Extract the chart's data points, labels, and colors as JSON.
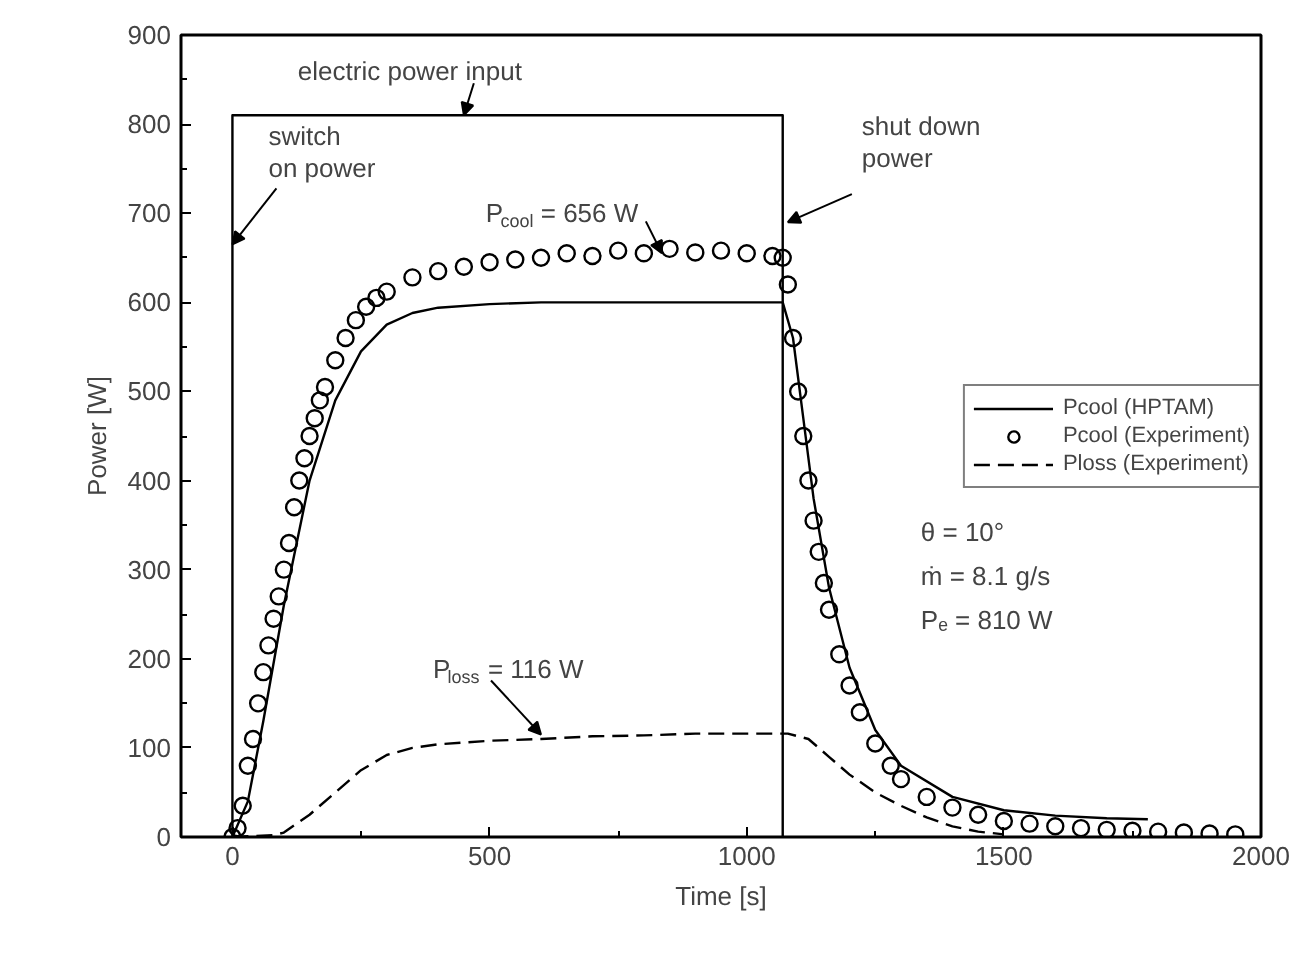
{
  "chart_data": {
    "type": "line",
    "xlabel": "Time [s]",
    "ylabel": "Power [W]",
    "xlim": [
      -100,
      2000
    ],
    "ylim": [
      0,
      900
    ],
    "xticks": [
      0,
      {
        "value": 250,
        "label": null
      },
      500,
      {
        "value": 750,
        "label": null
      },
      1000,
      {
        "value": 1250,
        "label": null
      },
      1500,
      {
        "value": 1750,
        "label": null
      },
      2000
    ],
    "yticks": [
      0,
      {
        "value": 50,
        "label": null
      },
      100,
      {
        "value": 150,
        "label": null
      },
      200,
      {
        "value": 250,
        "label": null
      },
      300,
      {
        "value": 350,
        "label": null
      },
      400,
      {
        "value": 450,
        "label": null
      },
      500,
      {
        "value": 550,
        "label": null
      },
      600,
      {
        "value": 650,
        "label": null
      },
      700,
      {
        "value": 750,
        "label": null
      },
      800,
      {
        "value": 850,
        "label": null
      },
      900
    ],
    "grid": false,
    "legend": "right",
    "series": [
      {
        "name": "Pcool (HPTAM)",
        "line_style": "solid",
        "color": "#000000",
        "x": [
          0,
          30,
          60,
          100,
          150,
          200,
          250,
          300,
          350,
          400,
          500,
          600,
          800,
          1000,
          1070,
          1090,
          1110,
          1130,
          1160,
          1200,
          1250,
          1300,
          1400,
          1500,
          1600,
          1700,
          1780
        ],
        "values": [
          0,
          40,
          130,
          260,
          400,
          490,
          545,
          575,
          588,
          594,
          598,
          600,
          600,
          600,
          600,
          560,
          470,
          380,
          280,
          190,
          120,
          80,
          45,
          30,
          24,
          21,
          20
        ]
      },
      {
        "name": "Pcool (Experiment)",
        "type": "scatter",
        "marker": "circle",
        "color": "#000000",
        "x": [
          0,
          10,
          20,
          30,
          40,
          50,
          60,
          70,
          80,
          90,
          100,
          110,
          120,
          130,
          140,
          150,
          160,
          170,
          180,
          200,
          220,
          240,
          260,
          280,
          300,
          350,
          400,
          450,
          500,
          550,
          600,
          650,
          700,
          750,
          800,
          850,
          900,
          950,
          1000,
          1050,
          1070,
          1080,
          1090,
          1100,
          1110,
          1120,
          1130,
          1140,
          1150,
          1160,
          1180,
          1200,
          1220,
          1250,
          1280,
          1300,
          1350,
          1400,
          1450,
          1500,
          1550,
          1600,
          1650,
          1700,
          1750,
          1800,
          1850,
          1900,
          1950
        ],
        "values": [
          0,
          10,
          35,
          80,
          110,
          150,
          185,
          215,
          245,
          270,
          300,
          330,
          370,
          400,
          425,
          450,
          470,
          490,
          505,
          535,
          560,
          580,
          595,
          605,
          612,
          628,
          635,
          640,
          645,
          648,
          650,
          655,
          652,
          658,
          655,
          660,
          656,
          658,
          655,
          652,
          650,
          620,
          560,
          500,
          450,
          400,
          355,
          320,
          285,
          255,
          205,
          170,
          140,
          105,
          80,
          65,
          45,
          33,
          25,
          18,
          15,
          12,
          10,
          8,
          7,
          6,
          5,
          4,
          3
        ]
      },
      {
        "name": "Ploss (Experiment)",
        "line_style": "dashed",
        "color": "#000000",
        "x": [
          0,
          80,
          100,
          150,
          200,
          250,
          300,
          350,
          400,
          500,
          600,
          700,
          800,
          900,
          1000,
          1080,
          1120,
          1160,
          1200,
          1250,
          1300,
          1350,
          1400,
          1450,
          1500
        ],
        "values": [
          0,
          2,
          5,
          25,
          50,
          75,
          92,
          100,
          104,
          108,
          110,
          113,
          114,
          116,
          116,
          116,
          110,
          90,
          70,
          50,
          35,
          22,
          12,
          6,
          3
        ]
      },
      {
        "line_style": "solid",
        "color": "#000000",
        "x": [
          0,
          0,
          1070,
          1070
        ],
        "values": [
          0,
          810,
          810,
          0
        ]
      }
    ],
    "annotations": [
      {
        "text": "electric power input",
        "x": 450,
        "y": 810
      },
      {
        "text": "switch\non power",
        "x": 0,
        "y": 665
      },
      {
        "text": "P$_{cool}$ = 656 W",
        "x": 835,
        "y": 655
      },
      {
        "text": "shut down\npower",
        "x": 1080,
        "y": 690
      },
      {
        "text": "P$_{loss}$ = 116 W",
        "x": 600,
        "y": 115
      },
      "θ = 10°",
      "ṁ = 8.1 g/s",
      "Pₑ = 810 W"
    ]
  }
}
